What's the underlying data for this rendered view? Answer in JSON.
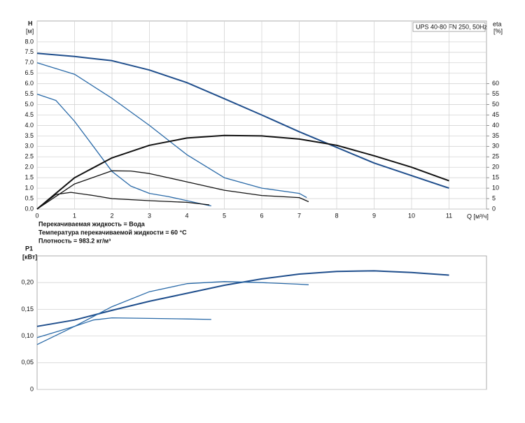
{
  "chart_data": [
    {
      "type": "line",
      "title": "UPS 40-80 FN 250, 50Hz",
      "ylabel": "H",
      "yunit": "[м]",
      "y2label": "eta",
      "y2unit": "[%]",
      "xlabel": "Q [м³/ч]",
      "notes": [
        "Перекачиваемая жидкость = Вода",
        "Температура перекачиваемой жидкости = 60 °C",
        "Плотность = 983.2 кг/м³"
      ],
      "xlim": [
        0,
        12
      ],
      "xticks": [
        0,
        1,
        2,
        3,
        4,
        5,
        6,
        7,
        8,
        9,
        10,
        11
      ],
      "ylim": [
        0,
        9
      ],
      "yticks": [
        {
          "value": 0,
          "label": "0.0"
        },
        0.5,
        {
          "value": 1,
          "label": "1.0"
        },
        1.5,
        {
          "value": 2,
          "label": "2.0"
        },
        2.5,
        {
          "value": 3,
          "label": "3.0"
        },
        3.5,
        {
          "value": 4,
          "label": "4.0"
        },
        4.5,
        {
          "value": 5,
          "label": "5.0"
        },
        5.5,
        {
          "value": 6,
          "label": "6.0"
        },
        6.5,
        {
          "value": 7,
          "label": "7.0"
        },
        7.5,
        {
          "value": 8,
          "label": "8.0"
        }
      ],
      "y2lim": [
        0,
        90
      ],
      "y2ticks": [
        0,
        5,
        10,
        15,
        20,
        25,
        30,
        35,
        40,
        45,
        50,
        55,
        60
      ],
      "grid": true,
      "series": [
        {
          "color": "#1f4e8c",
          "width": 2,
          "x": [
            0,
            1,
            2,
            3,
            4,
            5,
            6,
            7,
            8,
            9,
            10,
            11
          ],
          "values": [
            7.45,
            7.3,
            7.1,
            6.65,
            6.05,
            5.28,
            4.5,
            3.7,
            2.95,
            2.2,
            1.6,
            1.0
          ]
        },
        {
          "color": "#2a6aa8",
          "width": 1.3,
          "x": [
            0,
            1,
            2,
            3,
            4,
            5,
            6,
            7,
            7.2
          ],
          "values": [
            7.0,
            6.45,
            5.3,
            4.0,
            2.6,
            1.5,
            1.0,
            0.75,
            0.55
          ]
        },
        {
          "color": "#2a6aa8",
          "width": 1.3,
          "x": [
            0,
            0.5,
            1,
            1.5,
            2,
            2.5,
            3,
            3.5,
            4,
            4.5,
            4.65
          ],
          "values": [
            5.5,
            5.2,
            4.2,
            3.0,
            1.8,
            1.1,
            0.75,
            0.6,
            0.4,
            0.2,
            0.15
          ]
        },
        {
          "color": "#111111",
          "width": 2,
          "axis": "y2",
          "x": [
            0,
            1,
            2,
            3,
            4,
            5,
            6,
            7,
            8,
            9,
            10,
            11
          ],
          "values": [
            0,
            15,
            24.5,
            30.5,
            34,
            35.2,
            35,
            33.5,
            30.5,
            25.5,
            20,
            13.5
          ]
        },
        {
          "color": "#111111",
          "width": 1.3,
          "axis": "y2",
          "x": [
            0,
            1,
            2,
            2.5,
            3,
            4,
            5,
            6,
            7,
            7.25
          ],
          "values": [
            0,
            12,
            18.3,
            18.2,
            17,
            13,
            9,
            6.5,
            5.5,
            3.5
          ]
        },
        {
          "color": "#111111",
          "width": 1.3,
          "axis": "y2",
          "x": [
            0,
            0.5,
            0.9,
            1.5,
            2,
            3,
            4,
            4.6
          ],
          "values": [
            0,
            7,
            8,
            6.5,
            5,
            4,
            3.2,
            2
          ]
        }
      ]
    },
    {
      "type": "line",
      "ylabel": "P1",
      "yunit": "[кВт]",
      "xlim": [
        0,
        12
      ],
      "ylim": [
        0,
        0.25
      ],
      "yticks": [
        0,
        {
          "value": 0.05,
          "label": "0,05"
        },
        {
          "value": 0.1,
          "label": "0,10"
        },
        {
          "value": 0.15,
          "label": "0,15"
        },
        {
          "value": 0.2,
          "label": "0,20"
        }
      ],
      "grid": true,
      "series": [
        {
          "color": "#1f4e8c",
          "width": 2,
          "x": [
            0,
            1,
            2,
            3,
            4,
            5,
            6,
            7,
            8,
            9,
            10,
            11
          ],
          "values": [
            0.118,
            0.13,
            0.148,
            0.165,
            0.18,
            0.195,
            0.207,
            0.216,
            0.221,
            0.222,
            0.219,
            0.214
          ]
        },
        {
          "color": "#2a6aa8",
          "width": 1.3,
          "x": [
            0,
            1,
            2,
            3,
            4,
            5,
            6,
            7,
            7.25
          ],
          "values": [
            0.097,
            0.118,
            0.155,
            0.183,
            0.198,
            0.202,
            0.2,
            0.197,
            0.196
          ]
        },
        {
          "color": "#2a6aa8",
          "width": 1.3,
          "x": [
            0,
            1,
            1.5,
            2,
            3,
            4,
            4.65
          ],
          "values": [
            0.084,
            0.118,
            0.13,
            0.134,
            0.133,
            0.132,
            0.131
          ]
        }
      ]
    }
  ]
}
